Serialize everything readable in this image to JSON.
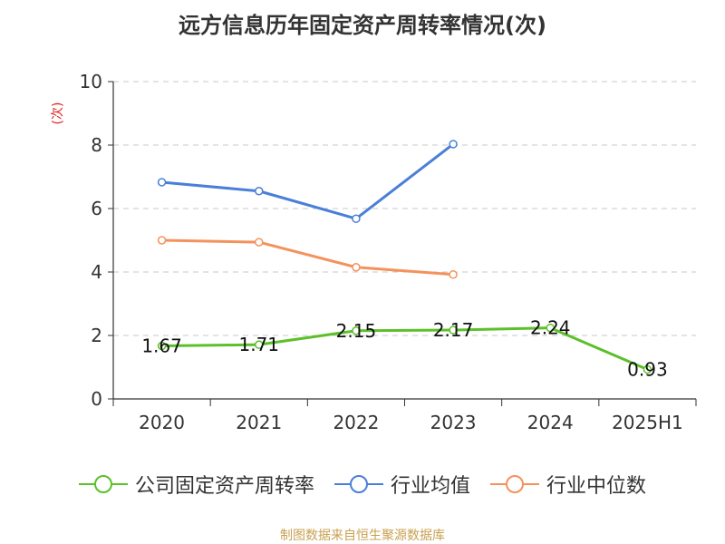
{
  "title": "远方信息历年固定资产周转率情况(次)",
  "source": "制图数据来自恒生聚源数据库",
  "chart_data": {
    "type": "line",
    "categories": [
      "2020",
      "2021",
      "2022",
      "2023",
      "2024",
      "2025H1"
    ],
    "ylim": [
      0,
      10
    ],
    "yticks": [
      0,
      2,
      4,
      6,
      8,
      10
    ],
    "y_unit": "(次)",
    "grid": true,
    "legend_position": "bottom",
    "series": [
      {
        "name": "公司固定资产周转率",
        "color": "#5cc02a",
        "values": [
          1.67,
          1.71,
          2.15,
          2.17,
          2.24,
          0.93
        ],
        "labels": [
          "1.67",
          "1.71",
          "2.15",
          "2.17",
          "2.24",
          "0.93"
        ],
        "show_labels": true
      },
      {
        "name": "行业均值",
        "color": "#4a7fd8",
        "values": [
          6.83,
          6.55,
          5.68,
          8.03,
          null,
          null
        ],
        "show_labels": false
      },
      {
        "name": "行业中位数",
        "color": "#f4925c",
        "values": [
          5.0,
          4.94,
          4.15,
          3.92,
          null,
          null
        ],
        "show_labels": false
      }
    ]
  }
}
